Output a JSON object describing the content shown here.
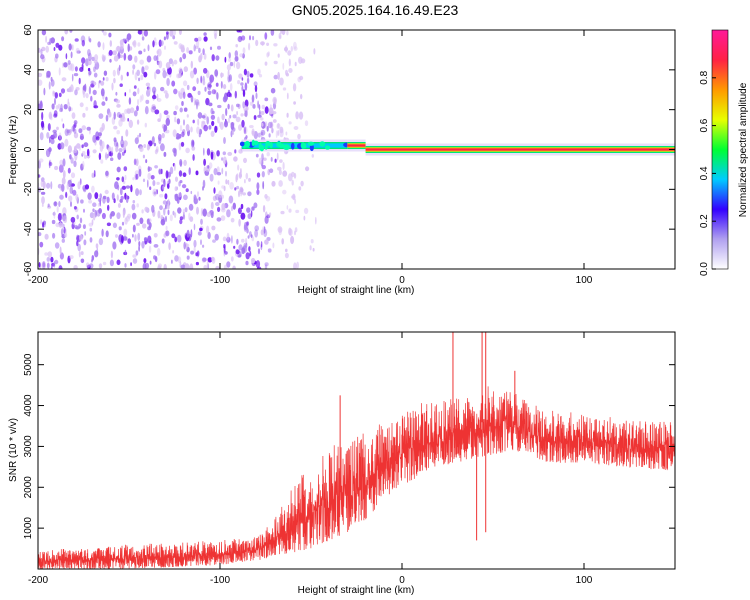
{
  "title": "GN05.2025.164.16.49.E23",
  "colors": {
    "axis": "#000000",
    "snr_line": "#ee3333",
    "spectrum_light": "#d9c0f5",
    "spectrum_mid": "#a070f0",
    "spectrum_dark": "#6a10f0"
  },
  "chart_data": [
    {
      "type": "heatmap",
      "xlabel": "Height of straight line (km)",
      "ylabel": "Frequency (Hz)",
      "xlim": [
        -200,
        150
      ],
      "ylim": [
        -60,
        60
      ],
      "xticks": [
        -200,
        -100,
        0,
        100
      ],
      "yticks": [
        -60,
        -40,
        -20,
        0,
        20,
        40,
        60
      ],
      "colorbar": {
        "label": "Normalized spectral amplitude",
        "range": [
          0,
          1
        ],
        "ticks": [
          0.0,
          0.2,
          0.4,
          0.6,
          0.8
        ],
        "tick_labels": [
          "0.0",
          "0.2",
          "0.4",
          "0.6",
          "0.8"
        ],
        "colormap": [
          "#ffffff",
          "#b0a0f0",
          "#3300ff",
          "#00ccff",
          "#00ff33",
          "#e8ff00",
          "#ff9900",
          "#ff2244",
          "#ff1a99"
        ]
      },
      "noise_region_x": [
        -200,
        -75
      ],
      "signal": {
        "frequency_hz": 0,
        "segments": [
          {
            "x": [
              -88,
              -30
            ],
            "frequency_hz": 2,
            "peak_amplitude": 0.35
          },
          {
            "x": [
              -30,
              -20
            ],
            "frequency_hz": 2,
            "peak_amplitude": 0.9
          },
          {
            "x": [
              -20,
              150
            ],
            "frequency_hz": 0,
            "peak_amplitude": 0.9
          }
        ]
      }
    },
    {
      "type": "line",
      "xlabel": "Height of straight line (km)",
      "ylabel": "SNR (10 * v/v)",
      "xlim": [
        -200,
        150
      ],
      "ylim": [
        0,
        5800
      ],
      "xticks": [
        -200,
        -100,
        0,
        100
      ],
      "yticks": [
        1000,
        2000,
        3000,
        4000,
        5000
      ],
      "series": [
        {
          "envelope": {
            "x": [
              -200,
              -150,
              -100,
              -80,
              -70,
              -60,
              -50,
              -40,
              -30,
              -20,
              -10,
              0,
              10,
              20,
              30,
              40,
              50,
              60,
              70,
              80,
              100,
              120,
              150
            ],
            "low": [
              0,
              0,
              100,
              200,
              300,
              400,
              500,
              700,
              900,
              1200,
              1700,
              2000,
              2300,
              2500,
              2600,
              2700,
              2800,
              2900,
              2800,
              2600,
              2600,
              2500,
              2400
            ],
            "high": [
              450,
              600,
              700,
              800,
              1300,
              2100,
              2500,
              3000,
              3200,
              3400,
              3600,
              3800,
              4100,
              4100,
              4200,
              4400,
              4500,
              4400,
              4100,
              3900,
              3800,
              3700,
              3600
            ]
          },
          "spikes": [
            {
              "x": -34,
              "value": 4250
            },
            {
              "x": 28,
              "value": 5800
            },
            {
              "x": 44,
              "value": 5800
            },
            {
              "x": 46,
              "value": 5800
            },
            {
              "x": 62,
              "value": 4850
            },
            {
              "x": 41,
              "value": 700
            },
            {
              "x": 46,
              "value": 900
            }
          ]
        }
      ]
    }
  ]
}
